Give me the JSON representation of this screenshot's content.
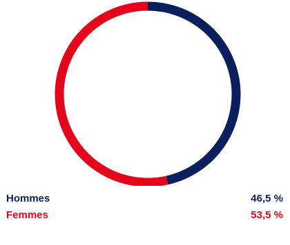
{
  "chart_data": {
    "type": "pie",
    "donut": true,
    "categories": [
      "Hommes",
      "Femmes"
    ],
    "values": [
      46.5,
      53.5
    ],
    "value_labels": [
      "46,5 %",
      "53,5 %"
    ],
    "colors": [
      "#0b1f5c",
      "#e3051b"
    ],
    "legend_placement": "bottom"
  }
}
